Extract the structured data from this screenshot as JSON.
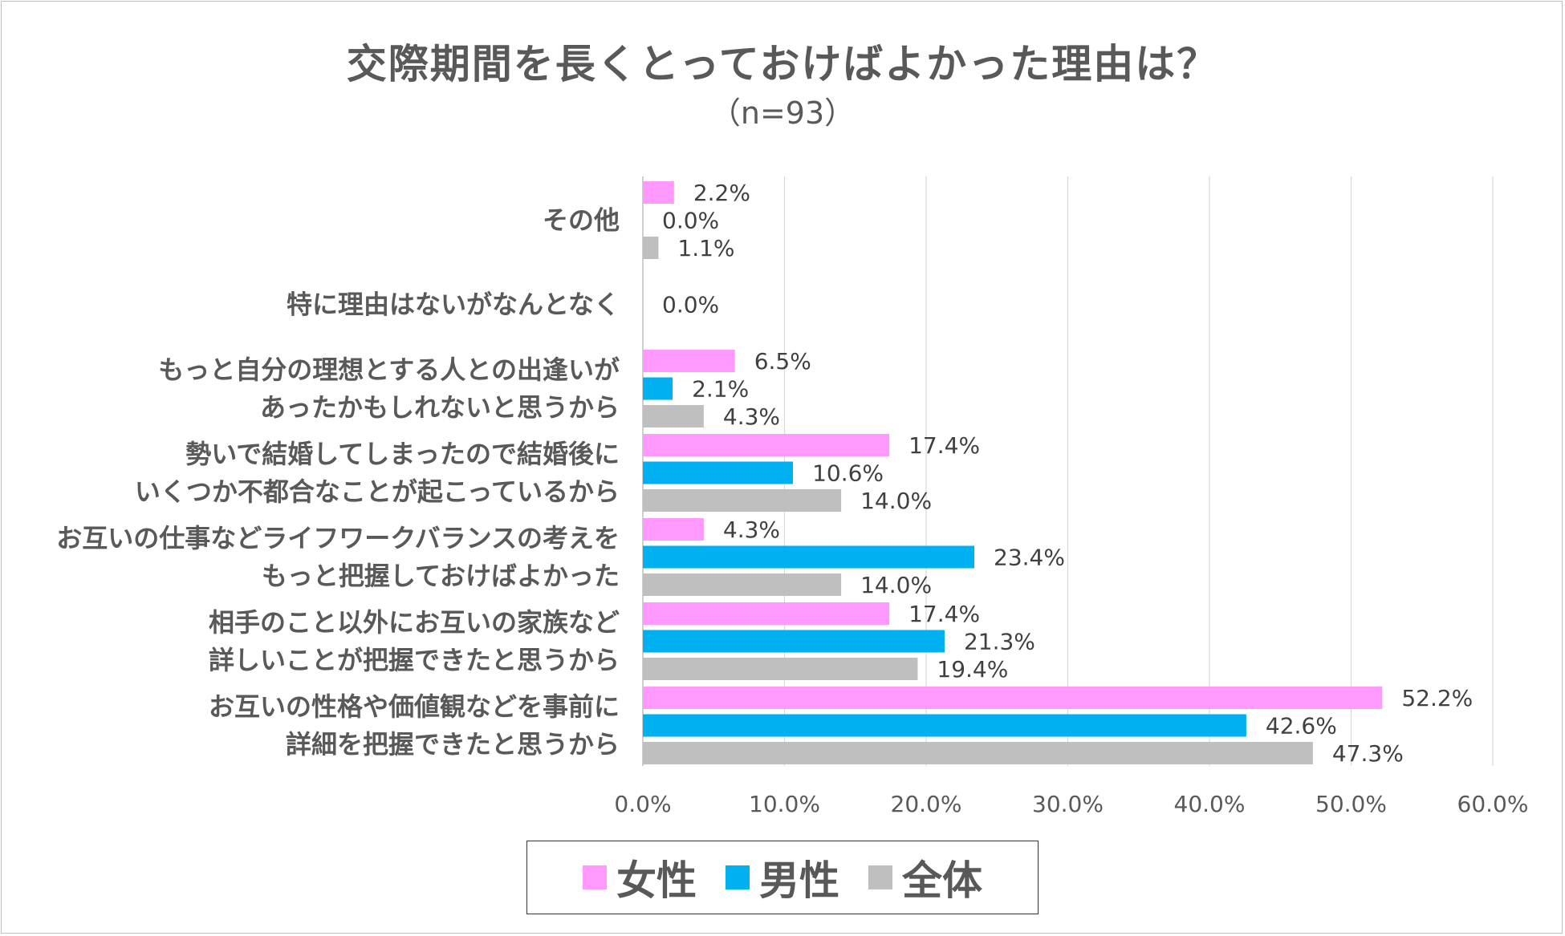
{
  "chart_data": {
    "type": "bar",
    "orientation": "horizontal",
    "title": "交際期間を長くとっておけばよかった理由は？",
    "subtitle": "（n=93）",
    "categories": [
      [
        "その他"
      ],
      [
        "特に理由はないがなんとなく"
      ],
      [
        "もっと自分の理想とする人との出逢いが",
        "あったかもしれないと思うから"
      ],
      [
        "勢いで結婚してしまったので結婚後に",
        "いくつか不都合なことが起こっているから"
      ],
      [
        "お互いの仕事などライフワークバランスの考えを",
        "もっと把握しておけばよかった"
      ],
      [
        "相手のこと以外にお互いの家族など",
        "詳しいことが把握できたと思うから"
      ],
      [
        "お互いの性格や価値観などを事前に",
        "詳細を把握できたと思うから"
      ]
    ],
    "series": [
      {
        "name": "女性",
        "color": "#FF99FF",
        "values": [
          2.2,
          null,
          6.5,
          17.4,
          4.3,
          17.4,
          52.2
        ],
        "labels": [
          "2.2%",
          null,
          "6.5%",
          "17.4%",
          "4.3%",
          "17.4%",
          "52.2%"
        ]
      },
      {
        "name": "男性",
        "color": "#00B0F0",
        "values": [
          0.0,
          0.0,
          2.1,
          10.6,
          23.4,
          21.3,
          42.6
        ],
        "labels": [
          "0.0%",
          "0.0%",
          "2.1%",
          "10.6%",
          "23.4%",
          "21.3%",
          "42.6%"
        ]
      },
      {
        "name": "全体",
        "color": "#BFBFBF",
        "values": [
          1.1,
          null,
          4.3,
          14.0,
          14.0,
          19.4,
          47.3
        ],
        "labels": [
          "1.1%",
          null,
          "4.3%",
          "14.0%",
          "14.0%",
          "19.4%",
          "47.3%"
        ]
      }
    ],
    "xlim": [
      0,
      60
    ],
    "xticks": [
      0,
      10,
      20,
      30,
      40,
      50,
      60
    ],
    "xtick_labels": [
      "0.0%",
      "10.0%",
      "20.0%",
      "30.0%",
      "40.0%",
      "50.0%",
      "60.0%"
    ],
    "grid": "vertical",
    "legend_position": "bottom"
  }
}
